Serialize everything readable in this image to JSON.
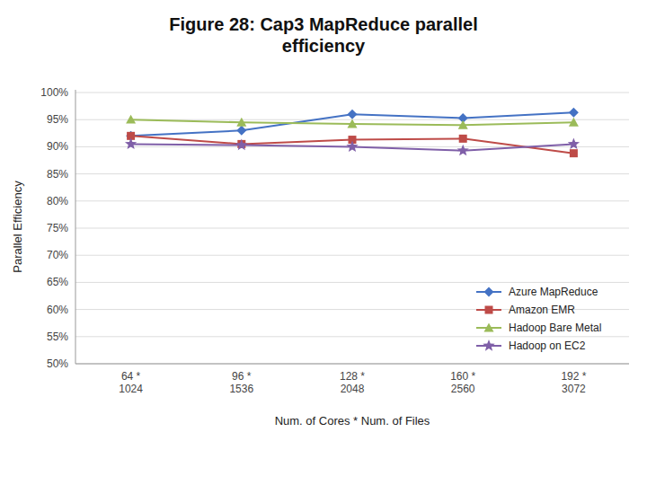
{
  "chart_data": {
    "type": "line",
    "title": "Figure 28: Cap3 MapReduce parallel\nefficiency",
    "x_label": "Num. of Cores * Num. of Files",
    "y_label": "Parallel Efficiency",
    "categories": [
      "64 *\n1024",
      "96 *\n1536",
      "128 *\n2048",
      "160 *\n2560",
      "192 *\n3072"
    ],
    "series": [
      {
        "name": "Azure MapReduce",
        "color": "#4472C4",
        "marker": "diamond",
        "values": [
          0.92,
          0.93,
          0.96,
          0.953,
          0.963
        ]
      },
      {
        "name": "Amazon EMR",
        "color": "#BE4B48",
        "marker": "square",
        "values": [
          0.92,
          0.905,
          0.913,
          0.915,
          0.888
        ]
      },
      {
        "name": "Hadoop Bare Metal",
        "color": "#9BBB59",
        "marker": "triangle",
        "values": [
          0.95,
          0.945,
          0.942,
          0.94,
          0.945
        ]
      },
      {
        "name": "Hadoop on EC2",
        "color": "#7F5FA8",
        "marker": "star",
        "values": [
          0.905,
          0.903,
          0.9,
          0.893,
          0.905
        ]
      }
    ],
    "ylim": [
      0.5,
      1.005
    ],
    "yticks": [
      {
        "value": 0.5,
        "label": "50%"
      },
      {
        "value": 0.55,
        "label": "55%"
      },
      {
        "value": 0.6,
        "label": "60%"
      },
      {
        "value": 0.65,
        "label": "65%"
      },
      {
        "value": 0.7,
        "label": "70%"
      },
      {
        "value": 0.75,
        "label": "75%"
      },
      {
        "value": 0.8,
        "label": "80%"
      },
      {
        "value": 0.85,
        "label": "85%"
      },
      {
        "value": 0.9,
        "label": "90%"
      },
      {
        "value": 0.95,
        "label": "95%"
      },
      {
        "value": 1.0,
        "label": "100%"
      }
    ],
    "grid": true,
    "legend": "lower right"
  }
}
